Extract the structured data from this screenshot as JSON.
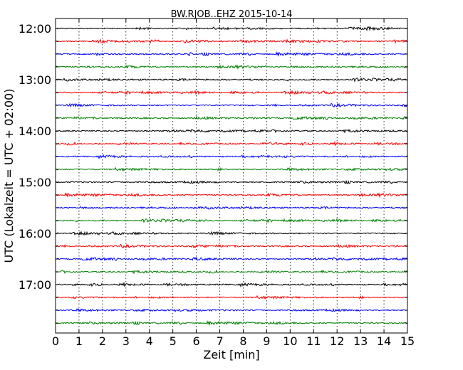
{
  "chart_data": {
    "type": "line",
    "title": "BW.RJOB..EHZ 2015-10-14",
    "xlabel": "Zeit  [min]",
    "ylabel": "UTC (Lokalzeit = UTC + 02:00)",
    "xlim": [
      0,
      15
    ],
    "x_ticks": [
      "0",
      "1",
      "2",
      "3",
      "4",
      "5",
      "6",
      "7",
      "8",
      "9",
      "10",
      "11",
      "12",
      "13",
      "14",
      "15"
    ],
    "y_tick_labels": [
      "12:00",
      "13:00",
      "14:00",
      "15:00",
      "16:00",
      "17:00"
    ],
    "trace_start_times": [
      "12:00",
      "12:15",
      "12:30",
      "12:45",
      "13:00",
      "13:15",
      "13:30",
      "13:45",
      "14:00",
      "14:15",
      "14:30",
      "14:45",
      "15:00",
      "15:15",
      "15:30",
      "15:45",
      "16:00",
      "16:15",
      "16:30",
      "16:45",
      "17:00",
      "17:15",
      "17:30",
      "17:45"
    ],
    "trace_colors": [
      "#000000",
      "#ff0000",
      "#0000ff",
      "#008000"
    ],
    "grid_x": true,
    "legend": "none"
  }
}
